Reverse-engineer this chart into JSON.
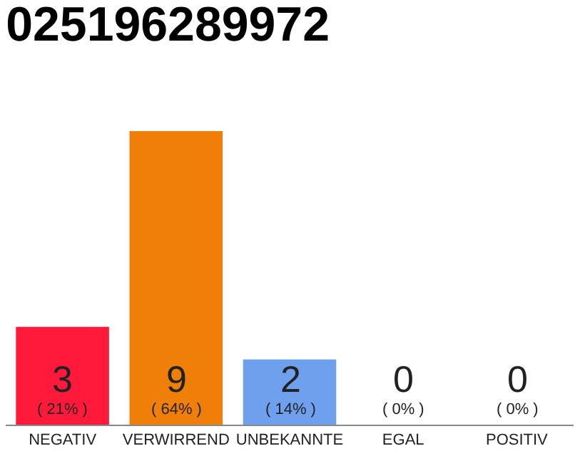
{
  "chart_data": {
    "type": "bar",
    "title": "025196289972",
    "categories": [
      "NEGATIV",
      "VERWIRREND",
      "UNBEKANNTE",
      "EGAL",
      "POSITIV"
    ],
    "values": [
      3,
      9,
      2,
      0,
      0
    ],
    "colors": [
      "#ff1a3c",
      "#f07f0a",
      "#6fa0ee",
      "#eeeeee",
      "#eeeeee"
    ],
    "value_labels": [
      "3\n( 21% )",
      "9\n( 64% )",
      "2\n( 14% )",
      "0\n( 0% )",
      "0\n( 0% )"
    ]
  }
}
